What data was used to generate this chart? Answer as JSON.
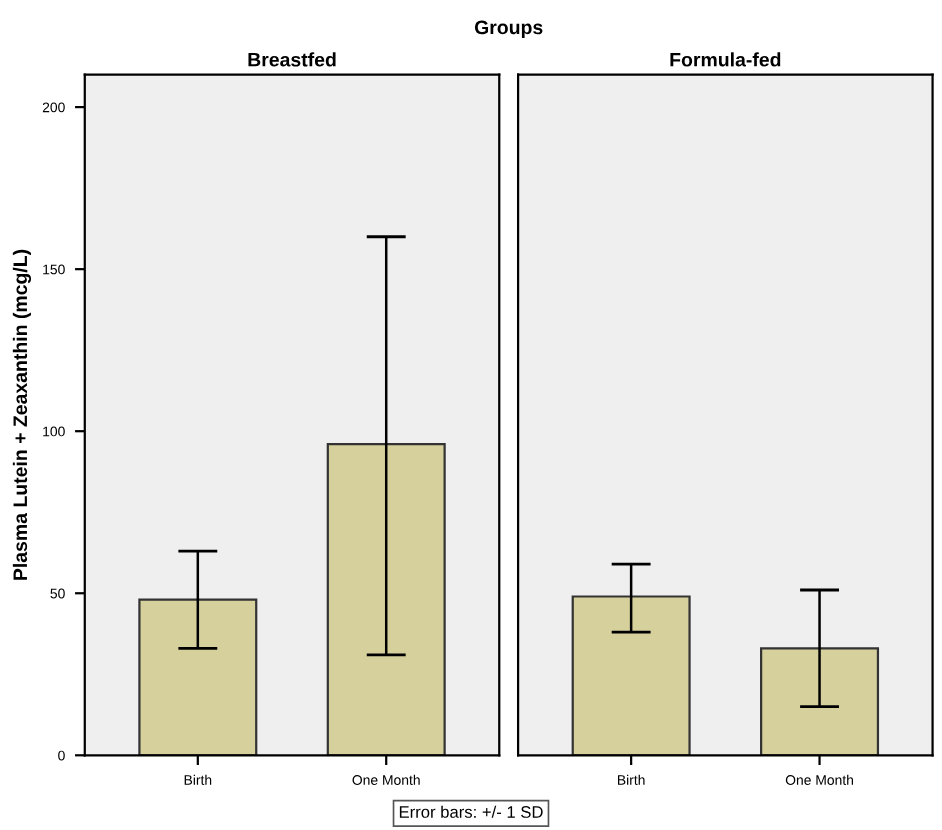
{
  "chart_data": [
    {
      "type": "bar",
      "title": "Breastfed",
      "ylabel": "Plasma Lutein + Zeaxanthin (mcg/L)",
      "categories": [
        "Birth",
        "One Month"
      ],
      "values": [
        48,
        96
      ],
      "errors": [
        [
          33,
          63
        ],
        [
          31,
          160
        ]
      ],
      "color": "#d6d09c",
      "ylim": [
        0,
        210
      ],
      "yticks": [
        0,
        50,
        100,
        150,
        200
      ],
      "grid": false,
      "annotations": [
        "Groups",
        "Error bars: +/- 1 SD"
      ]
    },
    {
      "type": "bar",
      "title": "Formula-fed",
      "categories": [
        "Birth",
        "One Month"
      ],
      "values": [
        49,
        33
      ],
      "errors": [
        [
          38,
          59
        ],
        [
          15,
          51
        ]
      ],
      "color": "#d6d09c",
      "ylim": [
        0,
        210
      ],
      "tick_labels": "x",
      "grid": false
    }
  ]
}
